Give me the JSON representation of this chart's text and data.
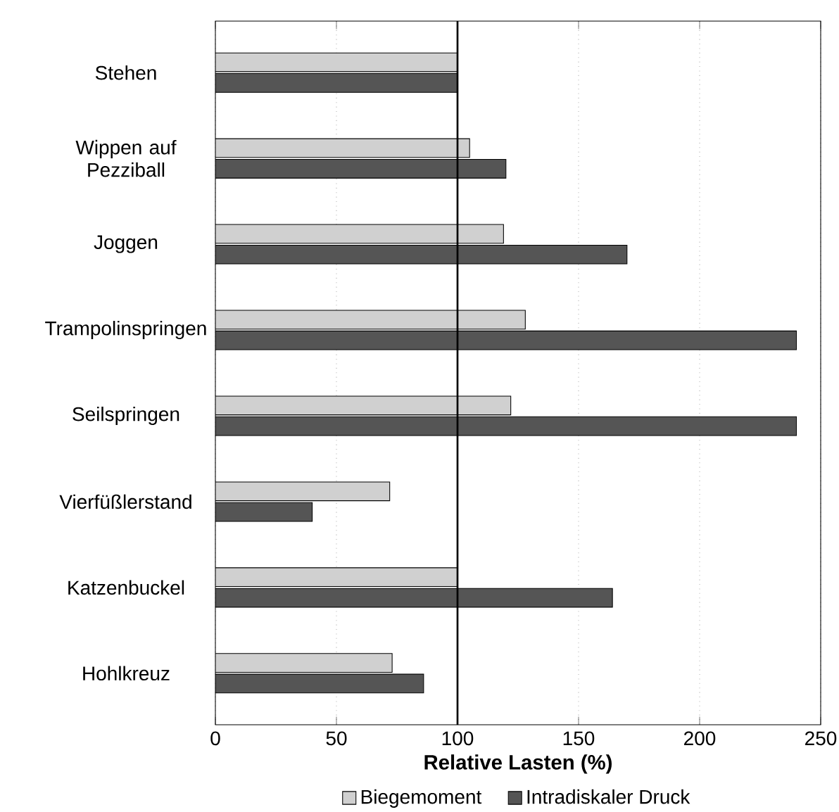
{
  "chart_data": {
    "type": "bar",
    "orientation": "horizontal",
    "xlabel": "Relative Lasten (%)",
    "categories": [
      "Stehen",
      "Wippen auf Pezziball",
      "Joggen",
      "Trampolinspringen",
      "Seilspringen",
      "Vierfüßlerstand",
      "Katzenbuckel",
      "Hohlkreuz"
    ],
    "series": [
      {
        "name": "Biegemoment",
        "color": "#d0d0d0",
        "values": [
          100,
          105,
          119,
          128,
          122,
          72,
          100,
          73
        ]
      },
      {
        "name": "Intradiskaler Druck",
        "color": "#555555",
        "values": [
          100,
          120,
          170,
          240,
          240,
          40,
          164,
          86
        ]
      }
    ],
    "xlim": [
      0,
      250
    ],
    "xticks": [
      0,
      50,
      100,
      150,
      200,
      250
    ],
    "grid": "x",
    "legend": "bottom",
    "ref_lines": [
      {
        "axis": "x",
        "value": 100,
        "color": "#000000"
      }
    ]
  }
}
